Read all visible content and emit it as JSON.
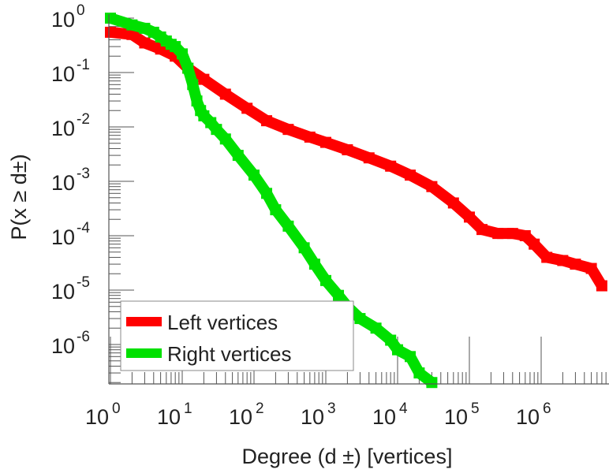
{
  "chart_data": {
    "type": "line",
    "xscale": "log",
    "yscale": "log",
    "xlabel": "Degree (d ±) [vertices]",
    "ylabel": "P(x ≥ d±)",
    "xlim_log10": [
      0,
      6.9
    ],
    "ylim_log10": [
      -6.72,
      0.08
    ],
    "x_ticks": [
      {
        "base": "10",
        "exp": "0"
      },
      {
        "base": "10",
        "exp": "1"
      },
      {
        "base": "10",
        "exp": "2"
      },
      {
        "base": "10",
        "exp": "3"
      },
      {
        "base": "10",
        "exp": "4"
      },
      {
        "base": "10",
        "exp": "5"
      },
      {
        "base": "10",
        "exp": "6"
      }
    ],
    "y_ticks": [
      {
        "base": "10",
        "exp": "0"
      },
      {
        "base": "10",
        "exp": "-1"
      },
      {
        "base": "10",
        "exp": "-2"
      },
      {
        "base": "10",
        "exp": "-3"
      },
      {
        "base": "10",
        "exp": "-4"
      },
      {
        "base": "10",
        "exp": "-5"
      },
      {
        "base": "10",
        "exp": "-6"
      }
    ],
    "legend": "bottom-left",
    "series": [
      {
        "name": "Left vertices",
        "color": "#ff0000",
        "x": [
          1,
          2,
          3,
          5,
          8,
          12,
          20,
          40,
          80,
          150,
          300,
          600,
          1000,
          2000,
          4000,
          8000,
          15000,
          30000,
          60000,
          100000,
          150000,
          250000,
          400000,
          600000,
          800000,
          1200000,
          2000000,
          3000000,
          5000000,
          7000000
        ],
        "y": [
          0.55,
          0.5,
          0.35,
          0.27,
          0.2,
          0.12,
          0.075,
          0.04,
          0.022,
          0.013,
          0.009,
          0.0065,
          0.0052,
          0.0038,
          0.0027,
          0.0019,
          0.0013,
          0.0008,
          0.0004,
          0.00022,
          0.00013,
          0.00011,
          0.00011,
          0.0001,
          7e-05,
          4e-05,
          3.5e-05,
          3e-05,
          2.5e-05,
          1.2e-05
        ]
      },
      {
        "name": "Right vertices",
        "color": "#00e000",
        "x": [
          1,
          2,
          3,
          4,
          5,
          6,
          7,
          8,
          10,
          12,
          14,
          16,
          18,
          20,
          25,
          30,
          40,
          60,
          100,
          150,
          200,
          300,
          500,
          700,
          1000,
          1500,
          2000,
          3000,
          5000,
          8000,
          10000,
          15000,
          20000,
          30000
        ],
        "y": [
          1.0,
          0.75,
          0.65,
          0.55,
          0.45,
          0.38,
          0.33,
          0.3,
          0.22,
          0.12,
          0.06,
          0.03,
          0.02,
          0.016,
          0.012,
          0.009,
          0.006,
          0.003,
          0.0013,
          0.0006,
          0.0003,
          0.00015,
          6e-05,
          3e-05,
          1.5e-05,
          8e-06,
          5e-06,
          3e-06,
          2e-06,
          1.2e-06,
          8e-07,
          6e-07,
          3e-07,
          2e-07
        ]
      }
    ]
  }
}
